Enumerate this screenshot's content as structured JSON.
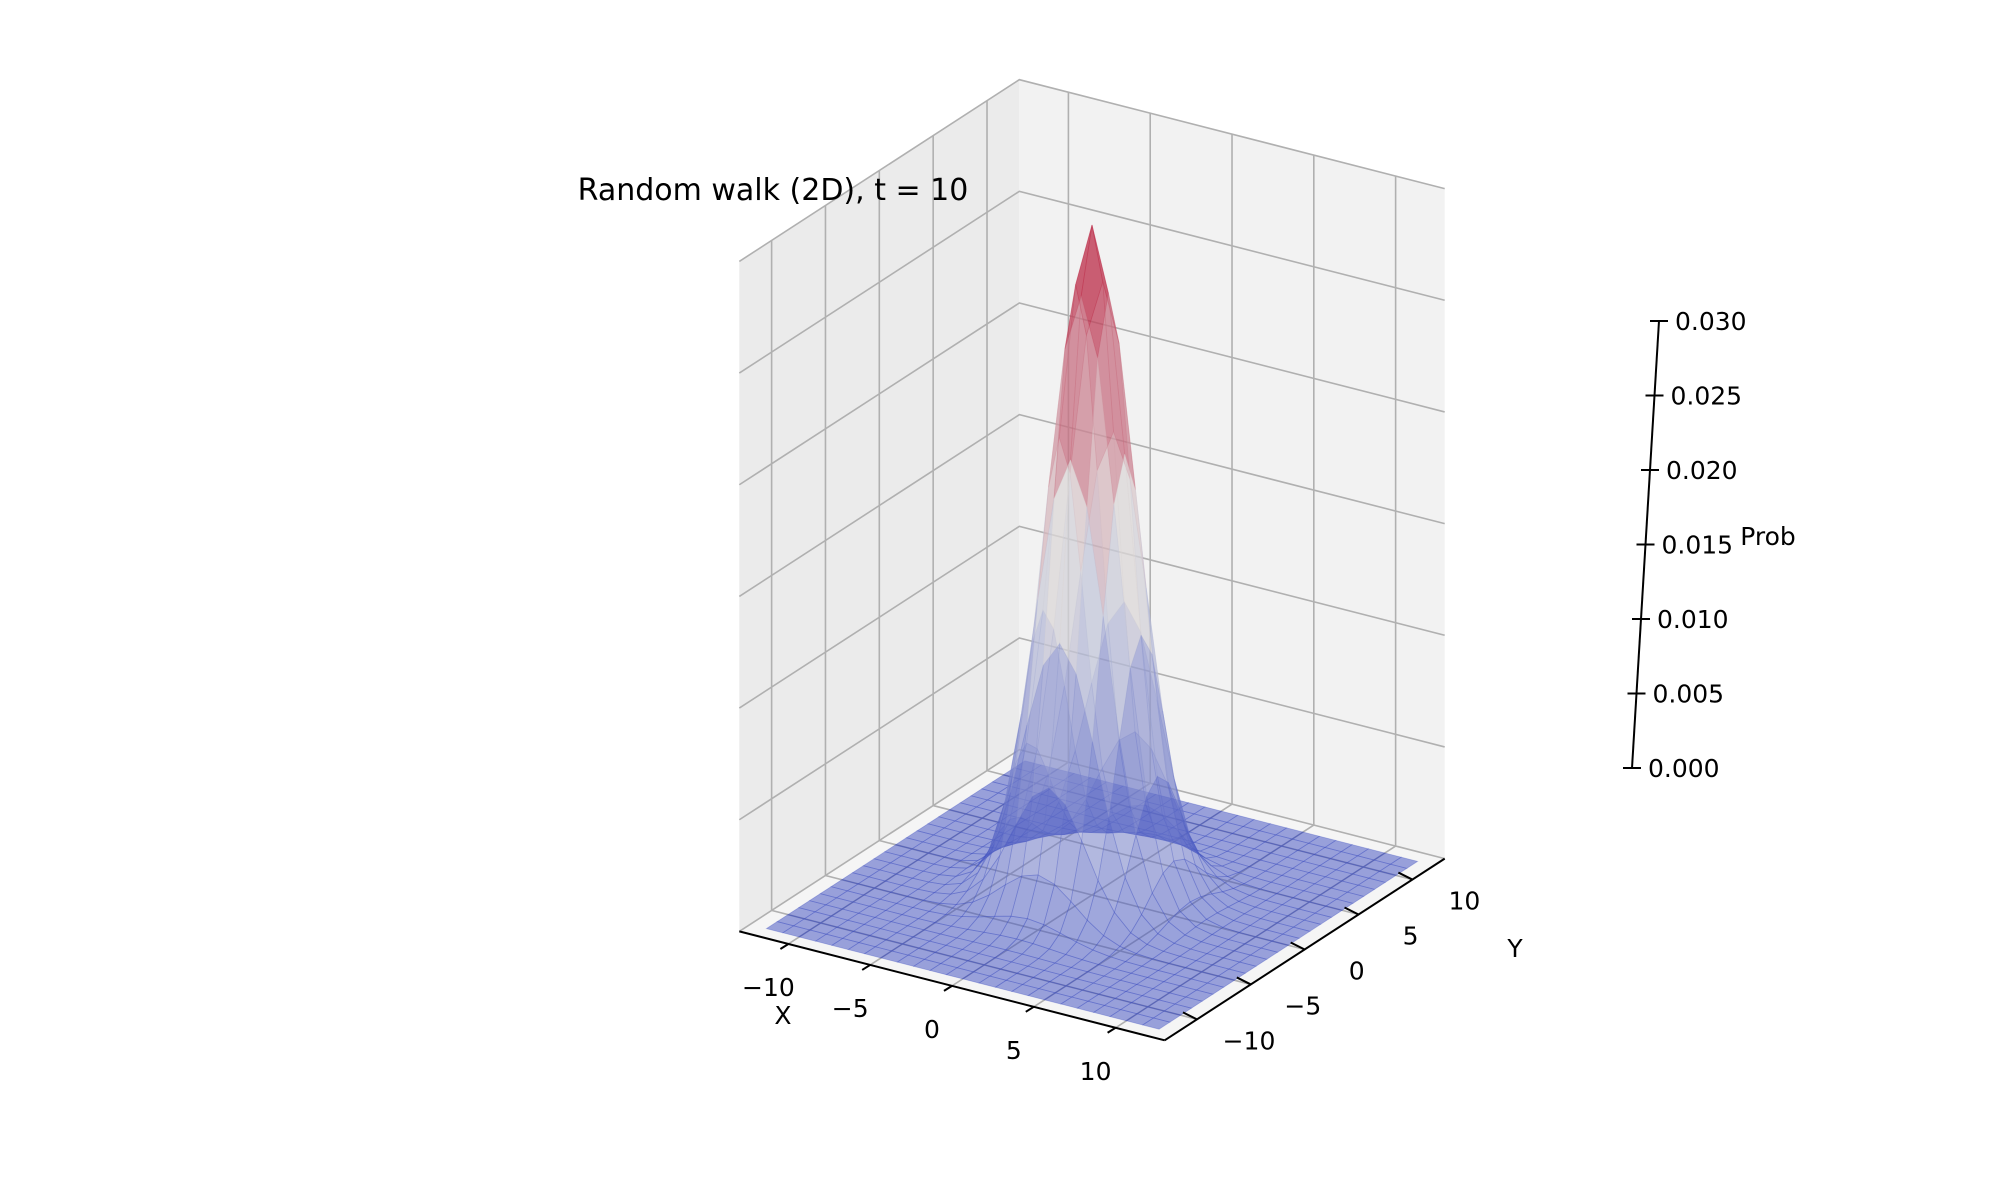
{
  "chart_data": {
    "type": "surface",
    "title": "Random walk (2D), t = 10",
    "xlabel": "X",
    "ylabel": "Y",
    "zlabel": "Prob",
    "xlim": [
      -13,
      13
    ],
    "ylim": [
      -13,
      13
    ],
    "zlim": [
      0,
      0.03
    ],
    "x_ticks": [
      -10,
      -5,
      0,
      5,
      10
    ],
    "y_ticks": [
      -10,
      -5,
      0,
      5,
      10
    ],
    "z_ticks": [
      0.0,
      0.005,
      0.01,
      0.015,
      0.02,
      0.025,
      0.03
    ],
    "x_tick_labels": [
      "−10",
      "−5",
      "0",
      "5",
      "10"
    ],
    "y_tick_labels": [
      "−10",
      "−5",
      "0",
      "5",
      "10"
    ],
    "z_tick_labels": [
      "0.000",
      "0.005",
      "0.010",
      "0.015",
      "0.020",
      "0.025",
      "0.030"
    ],
    "grid": true,
    "colormap": "coolwarm",
    "surface_alpha": 0.5,
    "distribution": {
      "kind": "gaussian",
      "center": [
        0,
        0
      ],
      "peak_probability": 0.03,
      "variance": 5,
      "sample_range": [
        -12,
        12
      ],
      "sample_step": 1
    }
  },
  "colors": {
    "pane_xz": "#f2f2f2",
    "pane_yz": "#ebebeb",
    "pane_xy": "#f5f5f5",
    "grid": "#b0b0b0",
    "axis": "#000000",
    "colormap_low": "#3b4cc0",
    "colormap_mid": "#dddddd",
    "colormap_high": "#b40426"
  }
}
